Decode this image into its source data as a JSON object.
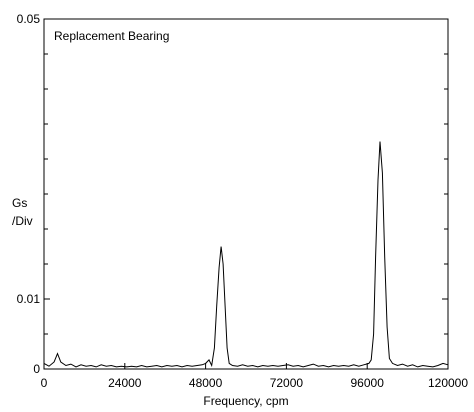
{
  "chart_data": {
    "type": "line",
    "title": "",
    "annotation": "Replacement Bearing",
    "xlabel": "Frequency, cpm",
    "ylabel_lines": [
      "Gs",
      "/Div"
    ],
    "xlim": [
      0,
      120000
    ],
    "ylim": [
      0,
      0.05
    ],
    "x_ticks": [
      0,
      24000,
      48000,
      72000,
      96000,
      120000
    ],
    "x_tick_labels": [
      "0",
      "24000",
      "48000",
      "72000",
      "96000",
      "120000"
    ],
    "y_tick_labels": [
      {
        "value": 0,
        "label": "0"
      },
      {
        "value": 0.01,
        "label": "0.01"
      },
      {
        "value": 0.05,
        "label": "0.05"
      }
    ],
    "y_minor_ticks": [
      0.005,
      0.015,
      0.02,
      0.025,
      0.03,
      0.035,
      0.04,
      0.045
    ],
    "grid": false,
    "series": [
      {
        "points": [
          [
            0,
            0.0008
          ],
          [
            1500,
            0.0004
          ],
          [
            3000,
            0.001
          ],
          [
            4000,
            0.0022
          ],
          [
            5000,
            0.001
          ],
          [
            6500,
            0.0005
          ],
          [
            8000,
            0.0007
          ],
          [
            9500,
            0.0003
          ],
          [
            11000,
            0.0006
          ],
          [
            12500,
            0.0004
          ],
          [
            14000,
            0.0005
          ],
          [
            15500,
            0.0003
          ],
          [
            17000,
            0.0006
          ],
          [
            18500,
            0.0004
          ],
          [
            20000,
            0.0005
          ],
          [
            21500,
            0.0003
          ],
          [
            23000,
            0.0004
          ],
          [
            24500,
            0.0003
          ],
          [
            26000,
            0.0004
          ],
          [
            27500,
            0.0003
          ],
          [
            29000,
            0.0005
          ],
          [
            30500,
            0.0003
          ],
          [
            32000,
            0.0004
          ],
          [
            33500,
            0.0005
          ],
          [
            35000,
            0.0003
          ],
          [
            36500,
            0.0005
          ],
          [
            38000,
            0.0004
          ],
          [
            39500,
            0.0005
          ],
          [
            41000,
            0.0003
          ],
          [
            42500,
            0.0005
          ],
          [
            44000,
            0.0004
          ],
          [
            45500,
            0.0005
          ],
          [
            47000,
            0.0006
          ],
          [
            48000,
            0.0008
          ],
          [
            49000,
            0.0013
          ],
          [
            49800,
            0.0005
          ],
          [
            50600,
            0.003
          ],
          [
            51300,
            0.009
          ],
          [
            52000,
            0.0145
          ],
          [
            52600,
            0.0175
          ],
          [
            53200,
            0.015
          ],
          [
            53800,
            0.009
          ],
          [
            54400,
            0.003
          ],
          [
            55000,
            0.0008
          ],
          [
            56000,
            0.0005
          ],
          [
            57500,
            0.0004
          ],
          [
            59000,
            0.0006
          ],
          [
            60500,
            0.0004
          ],
          [
            62000,
            0.0005
          ],
          [
            63500,
            0.0003
          ],
          [
            65000,
            0.0005
          ],
          [
            66500,
            0.0004
          ],
          [
            68000,
            0.0005
          ],
          [
            69500,
            0.0004
          ],
          [
            71000,
            0.0005
          ],
          [
            72500,
            0.0006
          ],
          [
            74000,
            0.0004
          ],
          [
            75500,
            0.0005
          ],
          [
            77000,
            0.0003
          ],
          [
            78500,
            0.0005
          ],
          [
            80000,
            0.0007
          ],
          [
            81500,
            0.0004
          ],
          [
            83000,
            0.0005
          ],
          [
            84500,
            0.0003
          ],
          [
            86000,
            0.0005
          ],
          [
            87500,
            0.0004
          ],
          [
            89000,
            0.0005
          ],
          [
            90500,
            0.0004
          ],
          [
            92000,
            0.0006
          ],
          [
            93500,
            0.0004
          ],
          [
            95000,
            0.0006
          ],
          [
            96500,
            0.0008
          ],
          [
            97200,
            0.0013
          ],
          [
            97900,
            0.005
          ],
          [
            98500,
            0.016
          ],
          [
            99200,
            0.027
          ],
          [
            99800,
            0.0325
          ],
          [
            100500,
            0.028
          ],
          [
            101200,
            0.016
          ],
          [
            101900,
            0.006
          ],
          [
            102600,
            0.0015
          ],
          [
            103500,
            0.0008
          ],
          [
            105000,
            0.0005
          ],
          [
            106500,
            0.0007
          ],
          [
            108000,
            0.0004
          ],
          [
            109500,
            0.0006
          ],
          [
            111000,
            0.0003
          ],
          [
            112500,
            0.0005
          ],
          [
            114000,
            0.0004
          ],
          [
            115500,
            0.0003
          ],
          [
            117000,
            0.0005
          ],
          [
            118500,
            0.0008
          ],
          [
            120000,
            0.0006
          ]
        ]
      }
    ]
  }
}
